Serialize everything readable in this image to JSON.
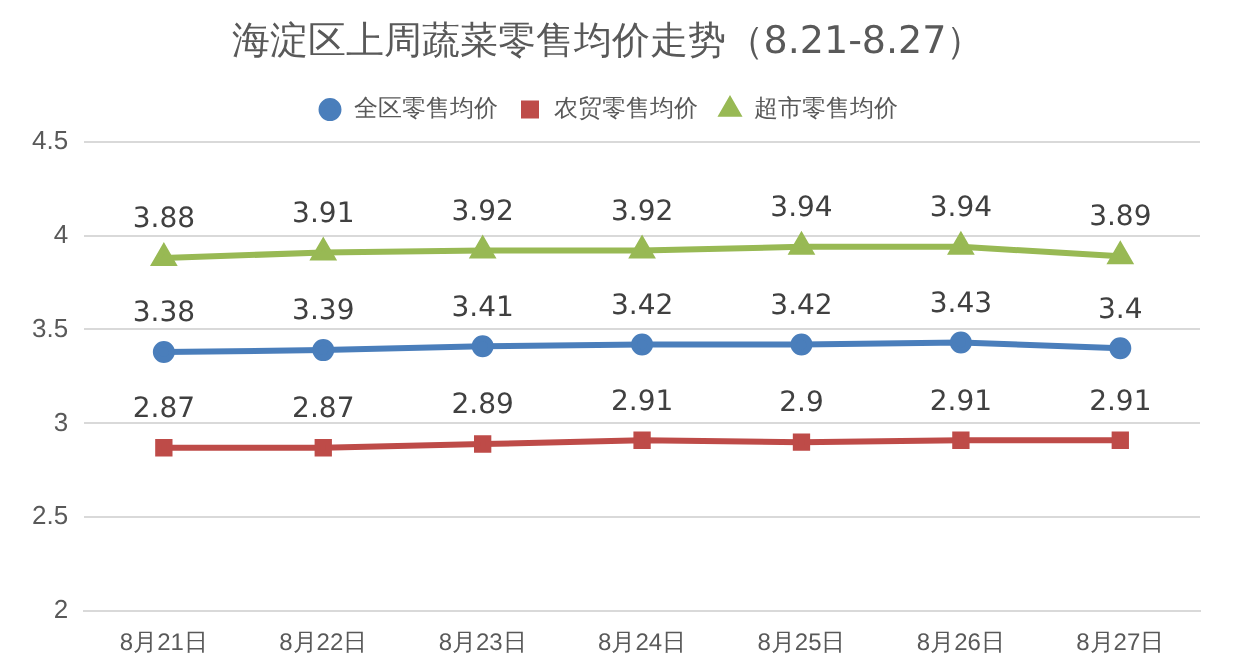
{
  "chart_data": {
    "type": "line",
    "title": "海淀区上周蔬菜零售均价走势（8.21-8.27）",
    "categories": [
      "8月21日",
      "8月22日",
      "8月23日",
      "8月24日",
      "8月25日",
      "8月26日",
      "8月27日"
    ],
    "series": [
      {
        "name": "全区零售均价",
        "color": "#4a7ebb",
        "marker": "circle",
        "values": [
          3.38,
          3.39,
          3.41,
          3.42,
          3.42,
          3.43,
          3.4
        ]
      },
      {
        "name": "农贸零售均价",
        "color": "#be4b48",
        "marker": "square",
        "values": [
          2.87,
          2.87,
          2.89,
          2.91,
          2.9,
          2.91,
          2.91
        ]
      },
      {
        "name": "超市零售均价",
        "color": "#98b954",
        "marker": "triangle",
        "values": [
          3.88,
          3.91,
          3.92,
          3.92,
          3.94,
          3.94,
          3.89
        ]
      }
    ],
    "ylim": [
      2,
      4.5
    ],
    "yticks": [
      2,
      2.5,
      3,
      3.5,
      4,
      4.5
    ],
    "grid": "y",
    "legend": "top",
    "data_labels": true
  }
}
